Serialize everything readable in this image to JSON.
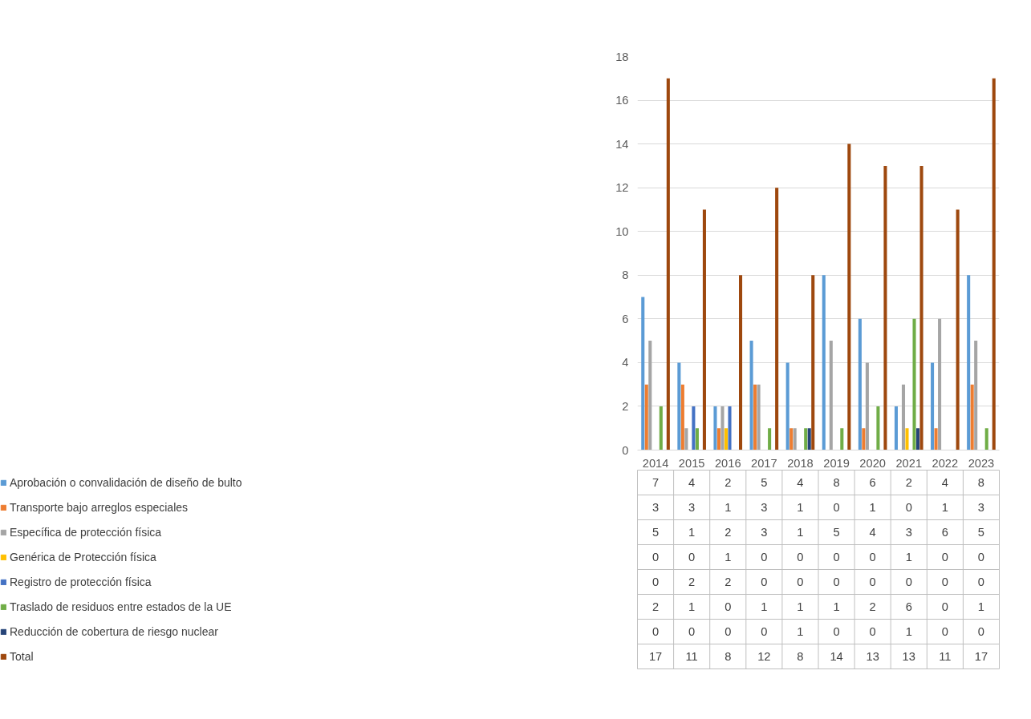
{
  "chart_data": {
    "type": "bar",
    "categories": [
      "2014",
      "2015",
      "2016",
      "2017",
      "2018",
      "2019",
      "2020",
      "2021",
      "2022",
      "2023"
    ],
    "series": [
      {
        "name": "Aprobación o convalidación de diseño de bulto",
        "color": "#5b9bd5",
        "values": [
          7,
          4,
          2,
          5,
          4,
          8,
          6,
          2,
          4,
          8
        ]
      },
      {
        "name": "Transporte bajo arreglos especiales",
        "color": "#ed7d31",
        "values": [
          3,
          3,
          1,
          3,
          1,
          0,
          1,
          0,
          1,
          3
        ]
      },
      {
        "name": "Específica de protección física",
        "color": "#a5a5a5",
        "values": [
          5,
          1,
          2,
          3,
          1,
          5,
          4,
          3,
          6,
          5
        ]
      },
      {
        "name": "Genérica de Protección física",
        "color": "#ffc000",
        "values": [
          0,
          0,
          1,
          0,
          0,
          0,
          0,
          1,
          0,
          0
        ]
      },
      {
        "name": "Registro de protección física",
        "color": "#4472c4",
        "values": [
          0,
          2,
          2,
          0,
          0,
          0,
          0,
          0,
          0,
          0
        ]
      },
      {
        "name": "Traslado de residuos entre estados de la UE",
        "color": "#70ad47",
        "values": [
          2,
          1,
          0,
          1,
          1,
          1,
          2,
          6,
          0,
          1
        ]
      },
      {
        "name": "Reducción de cobertura de riesgo nuclear",
        "color": "#264478",
        "values": [
          0,
          0,
          0,
          0,
          1,
          0,
          0,
          1,
          0,
          0
        ]
      },
      {
        "name": "Total",
        "color": "#9e480e",
        "values": [
          17,
          11,
          8,
          12,
          8,
          14,
          13,
          13,
          11,
          17
        ]
      }
    ],
    "ylim": [
      0,
      18
    ],
    "yticks": [
      0,
      2,
      4,
      6,
      8,
      10,
      12,
      14,
      16,
      18
    ],
    "grid": "y",
    "legend": "bottom",
    "data_labels": true
  }
}
